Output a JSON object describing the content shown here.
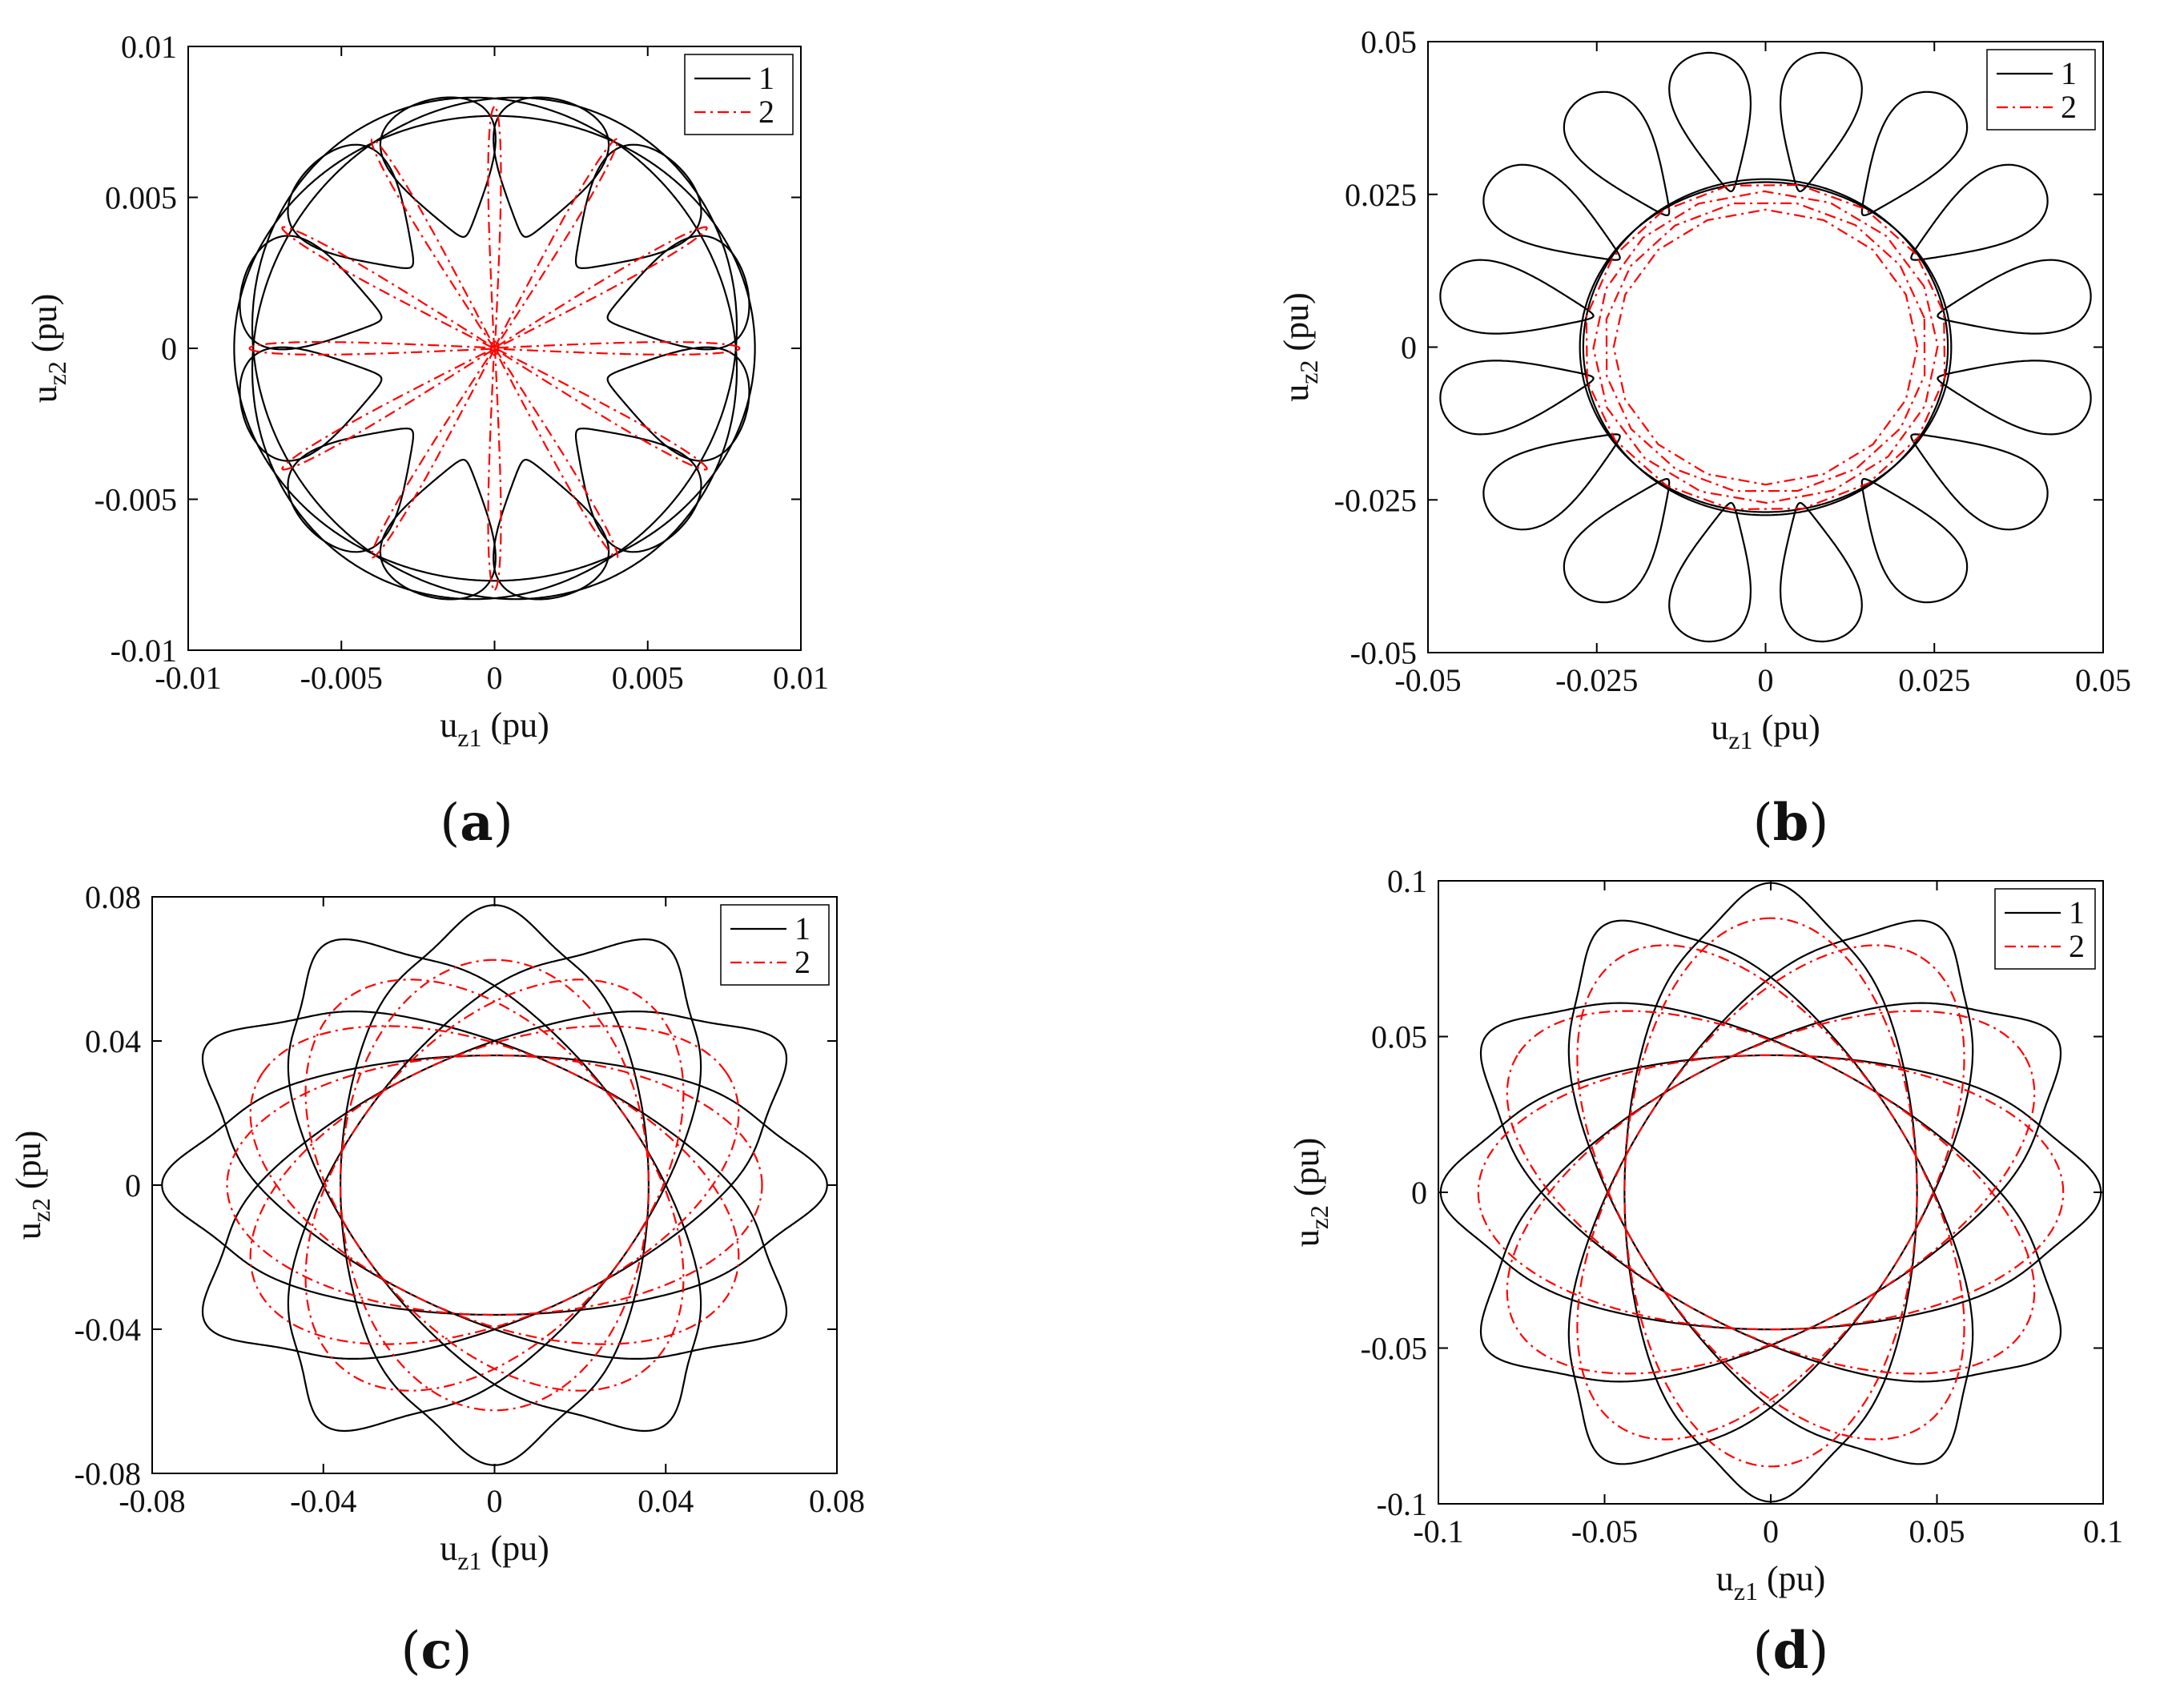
{
  "chart_data": [
    {
      "panel": "a",
      "type": "line",
      "caption_letter": "a",
      "xlabel_main": "u",
      "xlabel_sub": "z1",
      "xlabel_unit": " (pu)",
      "ylabel_main": "u",
      "ylabel_sub": "z2",
      "ylabel_unit": " (pu)",
      "xlim": [
        -0.01,
        0.01
      ],
      "ylim": [
        -0.01,
        0.01
      ],
      "xticks": [
        -0.01,
        -0.005,
        0,
        0.005,
        0.01
      ],
      "yticks": [
        -0.01,
        -0.005,
        0,
        0.005,
        0.01
      ],
      "xtick_labels": [
        "-0.01",
        "-0.005",
        "0",
        "0.005",
        "0.01"
      ],
      "ytick_labels": [
        "-0.01",
        "-0.005",
        "0",
        "0.005",
        "0.01"
      ],
      "legend": [
        "1",
        "2"
      ],
      "legend_position": "top-right",
      "series": [
        {
          "name": "1",
          "color": "#000000",
          "style": "solid",
          "curve": "rose-lobes",
          "lobe_count": 12,
          "lobe_outer_radius": 0.0085,
          "lobe_half_width": 0.0017,
          "inner_ellipse_count": 3,
          "inner_ellipse_a": 0.0085,
          "inner_ellipse_b": 0.0077
        },
        {
          "name": "2",
          "color": "#ff0000",
          "style": "dashdot",
          "curve": "petals-from-origin",
          "petal_count": 12,
          "petal_radius": 0.008,
          "petal_half_width": 0.0003
        }
      ]
    },
    {
      "panel": "b",
      "type": "line",
      "caption_letter": "b",
      "xlabel_main": "u",
      "xlabel_sub": "z1",
      "xlabel_unit": " (pu)",
      "ylabel_main": "u",
      "ylabel_sub": "z2",
      "ylabel_unit": " (pu)",
      "xlim": [
        -0.05,
        0.05
      ],
      "ylim": [
        -0.05,
        0.05
      ],
      "xticks": [
        -0.05,
        -0.025,
        0,
        0.025,
        0.05
      ],
      "yticks": [
        -0.05,
        -0.025,
        0,
        0.025,
        0.05
      ],
      "xtick_labels": [
        "-0.05",
        "-0.025",
        "0",
        "0.025",
        "0.05"
      ],
      "ytick_labels": [
        "-0.05",
        "-0.025",
        "0",
        "0.025",
        "0.05"
      ],
      "legend": [
        "1",
        "2"
      ],
      "legend_position": "top-right",
      "series": [
        {
          "name": "1",
          "color": "#000000",
          "style": "solid",
          "curve": "petal-ring",
          "petal_count": 16,
          "petal_inner_radius": 0.026,
          "petal_outer_radius": 0.049,
          "petal_half_width": 0.0085,
          "inner_ellipse_count": 2,
          "inner_ellipse_a": 0.027,
          "inner_ellipse_b": 0.0275
        },
        {
          "name": "2",
          "color": "#ff0000",
          "style": "dashdot",
          "curve": "ring-band",
          "inner_radius": 0.0225,
          "outer_radius": 0.027,
          "ring_count": 4
        }
      ]
    },
    {
      "panel": "c",
      "type": "line",
      "caption_letter": "c",
      "xlabel_main": "u",
      "xlabel_sub": "z1",
      "xlabel_unit": " (pu)",
      "ylabel_main": "u",
      "ylabel_sub": "z2",
      "ylabel_unit": " (pu)",
      "xlim": [
        -0.08,
        0.08
      ],
      "ylim": [
        -0.08,
        0.08
      ],
      "xticks": [
        -0.08,
        -0.04,
        0,
        0.04,
        0.08
      ],
      "yticks": [
        -0.08,
        -0.04,
        0,
        0.04,
        0.08
      ],
      "xtick_labels": [
        "-0.08",
        "-0.04",
        "0",
        "0.04",
        "0.08"
      ],
      "ytick_labels": [
        "-0.08",
        "-0.04",
        "0",
        "0.04",
        "0.08"
      ],
      "legend": [
        "1",
        "2"
      ],
      "legend_position": "top-right",
      "series": [
        {
          "name": "1",
          "color": "#000000",
          "style": "solid",
          "curve": "rotated-ellipses",
          "ellipse_count": 6,
          "ellipse_a": 0.074,
          "ellipse_b": 0.036,
          "ripple": 0.05
        },
        {
          "name": "2",
          "color": "#ff0000",
          "style": "dashdot",
          "curve": "rotated-ellipses",
          "ellipse_count": 6,
          "ellipse_a": 0.0625,
          "ellipse_b": 0.036,
          "ripple": 0.0
        }
      ]
    },
    {
      "panel": "d",
      "type": "line",
      "caption_letter": "d",
      "xlabel_main": "u",
      "xlabel_sub": "z1",
      "xlabel_unit": " (pu)",
      "ylabel_main": "u",
      "ylabel_sub": "z2",
      "ylabel_unit": " (pu)",
      "xlim": [
        -0.1,
        0.1
      ],
      "ylim": [
        -0.1,
        0.1
      ],
      "xticks": [
        -0.1,
        -0.05,
        0,
        0.05,
        0.1
      ],
      "yticks": [
        -0.1,
        -0.05,
        0,
        0.05,
        0.1
      ],
      "xtick_labels": [
        "-0.1",
        "-0.05",
        "0",
        "0.05",
        "0.1"
      ],
      "ytick_labels": [
        "-0.1",
        "-0.05",
        "0",
        "0.05",
        "0.1"
      ],
      "legend": [
        "1",
        "2"
      ],
      "legend_position": "top-right",
      "series": [
        {
          "name": "1",
          "color": "#000000",
          "style": "solid",
          "curve": "rotated-ellipses",
          "ellipse_count": 6,
          "ellipse_a": 0.0955,
          "ellipse_b": 0.044,
          "ripple": 0.04
        },
        {
          "name": "2",
          "color": "#ff0000",
          "style": "dashdot",
          "curve": "rotated-ellipses",
          "ellipse_count": 6,
          "ellipse_a": 0.088,
          "ellipse_b": 0.044,
          "ripple": 0.0
        }
      ]
    }
  ]
}
